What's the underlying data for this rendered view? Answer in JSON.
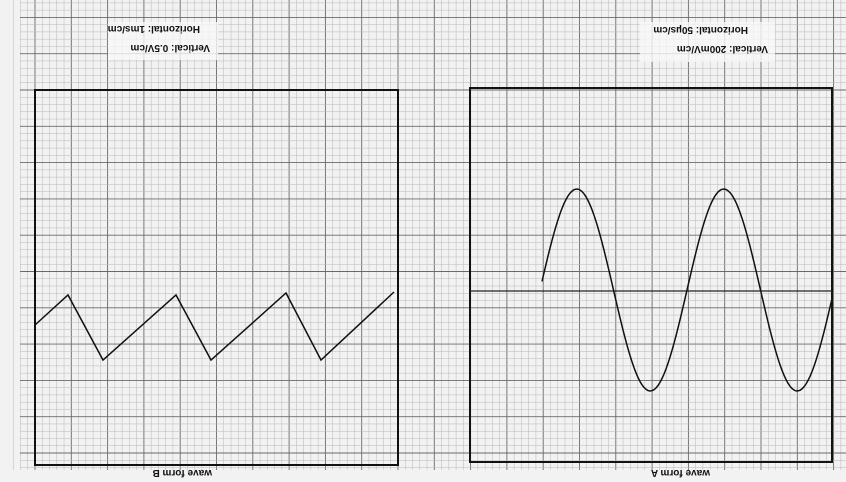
{
  "waveform_b": {
    "caption": "wave form B",
    "vertical_setting": "Vertical: 0.5V/cm",
    "horizontal_setting": "Horizontal: 1ms/cm",
    "shape": "sawtooth"
  },
  "waveform_a": {
    "caption": "wave form A",
    "vertical_setting": "Vertical: 200mV/cm",
    "horizontal_setting": "Horizontal: 50µs/cm",
    "shape": "sine"
  },
  "colors": {
    "paper": "#f2f2f2",
    "grid_minor": "#b8b8b8",
    "grid_major": "#6a6a6a",
    "trace": "#111111"
  }
}
